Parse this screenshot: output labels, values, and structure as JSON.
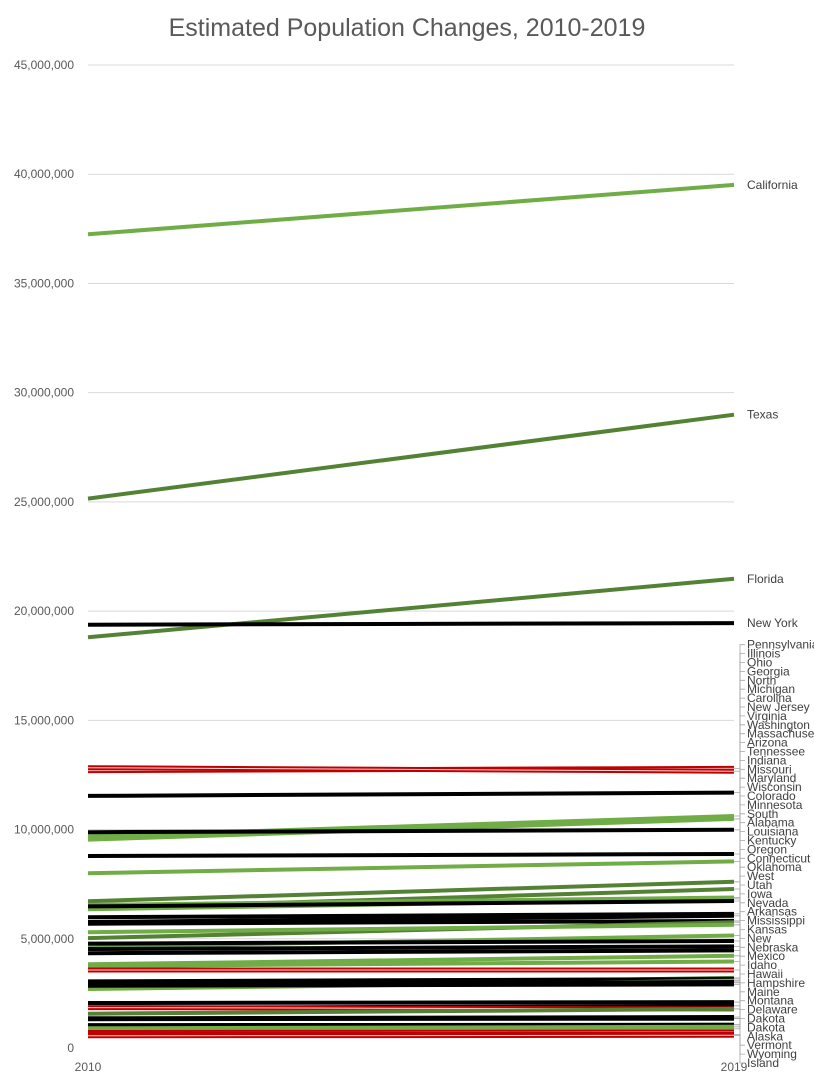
{
  "chart_data": {
    "type": "line",
    "title": "Estimated Population Changes, 2010-2019",
    "categories": [
      "2010",
      "2019"
    ],
    "ylim": [
      0,
      45000000
    ],
    "y_ticks": [
      "0",
      "5,000,000",
      "10,000,000",
      "15,000,000",
      "20,000,000",
      "25,000,000",
      "30,000,000",
      "35,000,000",
      "40,000,000",
      "45,000,000"
    ],
    "grid": true,
    "legend": "labels at line ends",
    "colors": {
      "growth": "#70ad47",
      "strong_growth": "#548235",
      "flat": "#000000",
      "decline": "#c00000"
    },
    "series": [
      {
        "name": "California",
        "values": [
          37250000,
          39510000
        ],
        "trend": "growth"
      },
      {
        "name": "Texas",
        "values": [
          25150000,
          28990000
        ],
        "trend": "strong_growth"
      },
      {
        "name": "Florida",
        "values": [
          18800000,
          21480000
        ],
        "trend": "strong_growth"
      },
      {
        "name": "New York",
        "values": [
          19380000,
          19450000
        ],
        "trend": "flat"
      },
      {
        "name": "Pennsylvania",
        "values": [
          12700000,
          12800000
        ],
        "trend": "decline"
      },
      {
        "name": "Illinois",
        "values": [
          12830000,
          12670000
        ],
        "trend": "decline"
      },
      {
        "name": "Ohio",
        "values": [
          11540000,
          11690000
        ],
        "trend": "flat"
      },
      {
        "name": "Georgia",
        "values": [
          9690000,
          10620000
        ],
        "trend": "growth"
      },
      {
        "name": "North Carolina",
        "values": [
          9540000,
          10490000
        ],
        "trend": "growth"
      },
      {
        "name": "Michigan",
        "values": [
          9880000,
          9990000
        ],
        "trend": "flat"
      },
      {
        "name": "New Jersey",
        "values": [
          8790000,
          8880000
        ],
        "trend": "flat"
      },
      {
        "name": "Virginia",
        "values": [
          8000000,
          8540000
        ],
        "trend": "growth"
      },
      {
        "name": "Washington",
        "values": [
          6720000,
          7610000
        ],
        "trend": "strong_growth"
      },
      {
        "name": "Arizona",
        "values": [
          6390000,
          7280000
        ],
        "trend": "strong_growth"
      },
      {
        "name": "Massachusetts",
        "values": [
          6550000,
          6890000
        ],
        "trend": "growth"
      },
      {
        "name": "Tennessee",
        "values": [
          6350000,
          6830000
        ],
        "trend": "growth"
      },
      {
        "name": "Indiana",
        "values": [
          6480000,
          6730000
        ],
        "trend": "flat"
      },
      {
        "name": "Missouri",
        "values": [
          5990000,
          6140000
        ],
        "trend": "flat"
      },
      {
        "name": "Maryland",
        "values": [
          5770000,
          6050000
        ],
        "trend": "flat"
      },
      {
        "name": "Wisconsin",
        "values": [
          5690000,
          5820000
        ],
        "trend": "flat"
      },
      {
        "name": "Colorado",
        "values": [
          5030000,
          5760000
        ],
        "trend": "strong_growth"
      },
      {
        "name": "Minnesota",
        "values": [
          5300000,
          5640000
        ],
        "trend": "growth"
      },
      {
        "name": "South Carolina",
        "values": [
          4630000,
          5150000
        ],
        "trend": "growth"
      },
      {
        "name": "Alabama",
        "values": [
          4780000,
          4900000
        ],
        "trend": "flat"
      },
      {
        "name": "Louisiana",
        "values": [
          4530000,
          4650000
        ],
        "trend": "flat"
      },
      {
        "name": "Kentucky",
        "values": [
          4340000,
          4470000
        ],
        "trend": "flat"
      },
      {
        "name": "Oregon",
        "values": [
          3830000,
          4220000
        ],
        "trend": "growth"
      },
      {
        "name": "Oklahoma",
        "values": [
          3750000,
          3960000
        ],
        "trend": "growth"
      },
      {
        "name": "Connecticut",
        "values": [
          3570000,
          3570000
        ],
        "trend": "decline"
      },
      {
        "name": "Utah",
        "values": [
          2760000,
          3210000
        ],
        "trend": "strong_growth"
      },
      {
        "name": "Iowa",
        "values": [
          3050000,
          3160000
        ],
        "trend": "flat"
      },
      {
        "name": "Nevada",
        "values": [
          2700000,
          3080000
        ],
        "trend": "growth"
      },
      {
        "name": "Arkansas",
        "values": [
          2920000,
          3020000
        ],
        "trend": "flat"
      },
      {
        "name": "Mississippi",
        "values": [
          2970000,
          2980000
        ],
        "trend": "flat"
      },
      {
        "name": "Kansas",
        "values": [
          2850000,
          2910000
        ],
        "trend": "flat"
      },
      {
        "name": "New Mexico",
        "values": [
          2060000,
          2100000
        ],
        "trend": "flat"
      },
      {
        "name": "Nebraska",
        "values": [
          1830000,
          1930000
        ],
        "trend": "flat"
      },
      {
        "name": "West Virginia",
        "values": [
          1850000,
          1790000
        ],
        "trend": "decline"
      },
      {
        "name": "Idaho",
        "values": [
          1570000,
          1790000
        ],
        "trend": "strong_growth"
      },
      {
        "name": "Hawaii",
        "values": [
          1360000,
          1420000
        ],
        "trend": "flat"
      },
      {
        "name": "New Hampshire",
        "values": [
          1320000,
          1360000
        ],
        "trend": "flat"
      },
      {
        "name": "Maine",
        "values": [
          1330000,
          1340000
        ],
        "trend": "flat"
      },
      {
        "name": "Montana",
        "values": [
          990000,
          1070000
        ],
        "trend": "growth"
      },
      {
        "name": "Rhode Island",
        "values": [
          1050000,
          1060000
        ],
        "trend": "flat"
      },
      {
        "name": "Delaware",
        "values": [
          900000,
          970000
        ],
        "trend": "growth"
      },
      {
        "name": "South Dakota",
        "values": [
          810000,
          880000
        ],
        "trend": "growth"
      },
      {
        "name": "North Dakota",
        "values": [
          670000,
          760000
        ],
        "trend": "growth"
      },
      {
        "name": "Alaska",
        "values": [
          710000,
          730000
        ],
        "trend": "decline"
      },
      {
        "name": "Vermont",
        "values": [
          630000,
          620000
        ],
        "trend": "decline"
      },
      {
        "name": "Wyoming",
        "values": [
          560000,
          580000
        ],
        "trend": "decline"
      }
    ],
    "end_labels": [
      {
        "series": "California",
        "text": "California"
      },
      {
        "series": "Texas",
        "text": "Texas"
      },
      {
        "series": "Florida",
        "text": "Florida"
      },
      {
        "series": "New York",
        "text": "New York"
      },
      {
        "series": "Pennsylvania",
        "text": "Pennsylvania"
      },
      {
        "series": "Illinois",
        "text": "Illinois"
      },
      {
        "series": "Ohio",
        "text": "Ohio"
      },
      {
        "series": "Georgia",
        "text": "Georgia"
      },
      {
        "series": "North Carolina",
        "text": "North"
      },
      {
        "series": "Michigan",
        "text": "Michigan"
      },
      {
        "series": "North Carolina",
        "text": "Carolina"
      },
      {
        "series": "New Jersey",
        "text": "New Jersey"
      },
      {
        "series": "Virginia",
        "text": "Virginia"
      },
      {
        "series": "Washington",
        "text": "Washington"
      },
      {
        "series": "Massachusetts",
        "text": "Massachusetts"
      },
      {
        "series": "Arizona",
        "text": "Arizona"
      },
      {
        "series": "Tennessee",
        "text": "Tennessee"
      },
      {
        "series": "Indiana",
        "text": "Indiana"
      },
      {
        "series": "Missouri",
        "text": "Missouri"
      },
      {
        "series": "Maryland",
        "text": "Maryland"
      },
      {
        "series": "Wisconsin",
        "text": "Wisconsin"
      },
      {
        "series": "Colorado",
        "text": "Colorado"
      },
      {
        "series": "Minnesota",
        "text": "Minnesota"
      },
      {
        "series": "South Carolina",
        "text": "South"
      },
      {
        "series": "Alabama",
        "text": "Alabama"
      },
      {
        "series": "Louisiana",
        "text": "Louisiana"
      },
      {
        "series": "Kentucky",
        "text": "Kentucky"
      },
      {
        "series": "Oregon",
        "text": "Oregon"
      },
      {
        "series": "Connecticut",
        "text": "Connecticut"
      },
      {
        "series": "Oklahoma",
        "text": "Oklahoma"
      },
      {
        "series": "West Virginia",
        "text": "West"
      },
      {
        "series": "Utah",
        "text": "Utah"
      },
      {
        "series": "Iowa",
        "text": "Iowa"
      },
      {
        "series": "Nevada",
        "text": "Nevada"
      },
      {
        "series": "Arkansas",
        "text": "Arkansas"
      },
      {
        "series": "Mississippi",
        "text": "Mississippi"
      },
      {
        "series": "Kansas",
        "text": "Kansas"
      },
      {
        "series": "New Mexico",
        "text": "New"
      },
      {
        "series": "Nebraska",
        "text": "Nebraska"
      },
      {
        "series": "New Mexico",
        "text": "Mexico"
      },
      {
        "series": "Idaho",
        "text": "Idaho"
      },
      {
        "series": "Hawaii",
        "text": "Hawaii"
      },
      {
        "series": "New Hampshire",
        "text": "Hampshire"
      },
      {
        "series": "Maine",
        "text": "Maine"
      },
      {
        "series": "Montana",
        "text": "Montana"
      },
      {
        "series": "Delaware",
        "text": "Delaware"
      },
      {
        "series": "South Dakota",
        "text": "Dakota"
      },
      {
        "series": "North Dakota",
        "text": "Dakota"
      },
      {
        "series": "Alaska",
        "text": "Alaska"
      },
      {
        "series": "Vermont",
        "text": "Vermont"
      },
      {
        "series": "Wyoming",
        "text": "Wyoming"
      },
      {
        "series": "Rhode Island",
        "text": "Island"
      }
    ]
  }
}
